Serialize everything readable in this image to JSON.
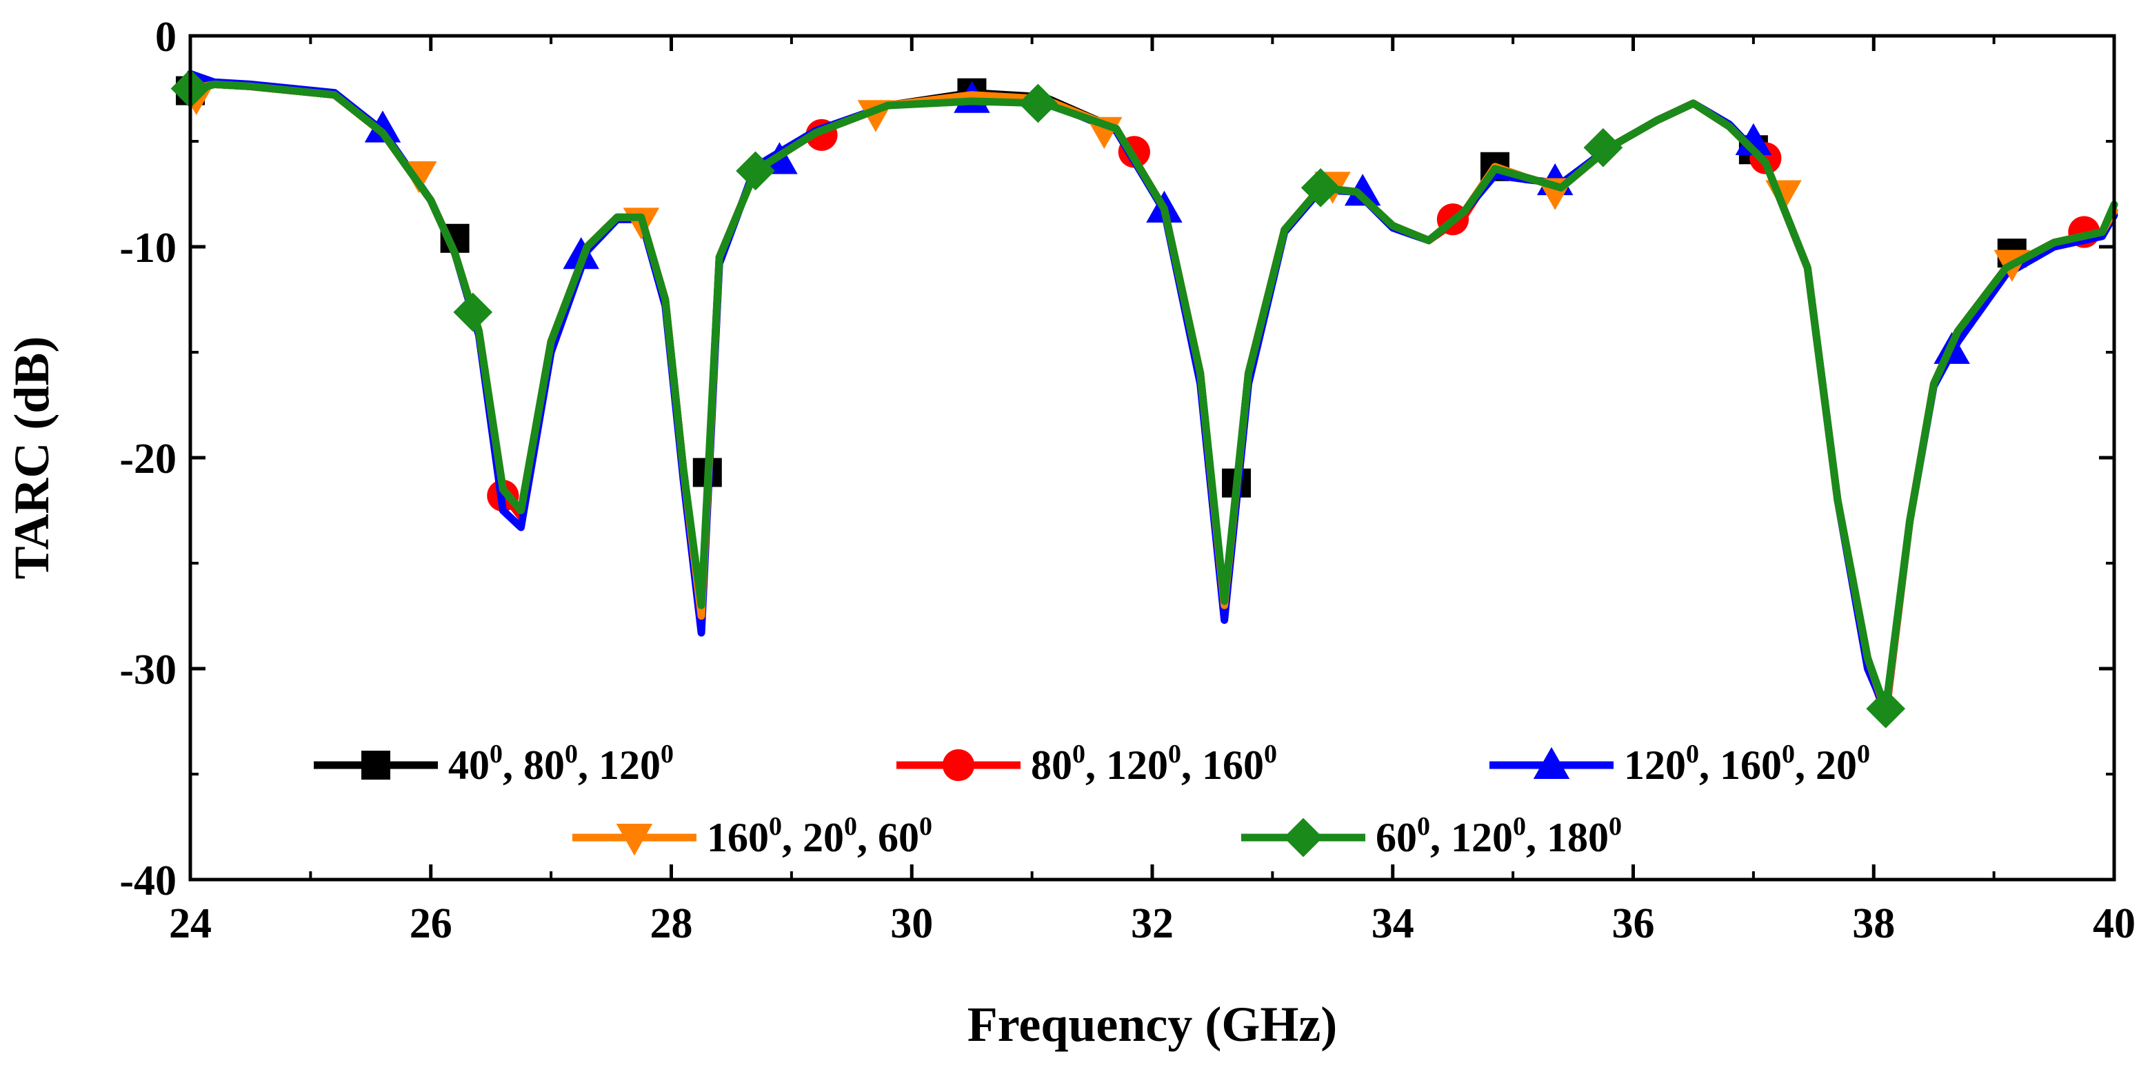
{
  "chart_data": {
    "type": "line",
    "title": "",
    "xlabel": "Frequency (GHz)",
    "ylabel": "TARC (dB)",
    "xlim": [
      24,
      40
    ],
    "ylim": [
      -40,
      0
    ],
    "xticks": [
      "24",
      "26",
      "28",
      "30",
      "32",
      "34",
      "36",
      "38",
      "40"
    ],
    "yticks": [
      "0",
      "-10",
      "-20",
      "-30",
      "-40"
    ],
    "grid": false,
    "legend_position": "bottom-center",
    "series": [
      {
        "name": "40⁰, 80⁰, 120⁰",
        "legend": {
          "parts": [
            "40",
            "0",
            ", 80",
            "0",
            ", 120",
            "0"
          ]
        },
        "color": "#000000",
        "marker": "square",
        "x": [
          24.0,
          24.2,
          24.5,
          25.2,
          25.6,
          26.0,
          26.2,
          26.4,
          26.6,
          26.75,
          27.0,
          27.3,
          27.55,
          27.75,
          27.95,
          28.1,
          28.25,
          28.4,
          28.7,
          29.2,
          29.8,
          30.5,
          31.1,
          31.7,
          32.1,
          32.4,
          32.6,
          32.8,
          33.1,
          33.4,
          33.7,
          34.0,
          34.3,
          34.6,
          34.85,
          35.1,
          35.4,
          35.8,
          36.2,
          36.5,
          36.8,
          37.1,
          37.45,
          37.7,
          37.95,
          38.1,
          38.3,
          38.5,
          38.7,
          39.1,
          39.5,
          39.9,
          40.0
        ],
        "y": [
          -2.5,
          -2.3,
          -2.4,
          -2.8,
          -4.6,
          -7.8,
          -10.3,
          -14.0,
          -21.5,
          -22.5,
          -14.5,
          -10.0,
          -8.6,
          -8.6,
          -12.5,
          -20.5,
          -27.5,
          -10.5,
          -6.4,
          -4.6,
          -3.3,
          -2.7,
          -2.9,
          -4.4,
          -8.2,
          -16.0,
          -27.0,
          -16.0,
          -9.2,
          -7.2,
          -7.4,
          -9.0,
          -9.7,
          -8.3,
          -6.2,
          -6.7,
          -7.2,
          -5.3,
          -4.0,
          -3.2,
          -4.3,
          -6.0,
          -11.0,
          -22.0,
          -29.5,
          -32.0,
          -23.0,
          -16.5,
          -14.0,
          -11.0,
          -9.8,
          -9.3,
          -8.3
        ],
        "markers_x": [
          24.0,
          26.2,
          28.3,
          30.5,
          32.7,
          34.85,
          37.0,
          39.15
        ],
        "markers_y": [
          -2.6,
          -9.6,
          -20.7,
          -2.7,
          -21.2,
          -6.2,
          -5.4,
          -10.3
        ]
      },
      {
        "name": "80⁰, 120⁰, 160⁰",
        "legend": {
          "parts": [
            "80",
            "0",
            ", 120",
            "0",
            ", 160",
            "0"
          ]
        },
        "color": "#ff0000",
        "marker": "circle",
        "x": [
          24.0,
          24.2,
          24.5,
          25.2,
          25.6,
          26.0,
          26.2,
          26.4,
          26.6,
          26.75,
          27.0,
          27.3,
          27.55,
          27.75,
          27.95,
          28.1,
          28.25,
          28.4,
          28.7,
          29.2,
          29.8,
          30.5,
          31.1,
          31.7,
          32.1,
          32.4,
          32.6,
          32.8,
          33.1,
          33.4,
          33.7,
          34.0,
          34.3,
          34.6,
          34.85,
          35.1,
          35.4,
          35.8,
          36.2,
          36.5,
          36.8,
          37.1,
          37.45,
          37.7,
          37.95,
          38.1,
          38.3,
          38.5,
          38.7,
          39.1,
          39.5,
          39.9,
          40.0
        ],
        "y": [
          -2.5,
          -2.3,
          -2.4,
          -2.8,
          -4.6,
          -7.8,
          -10.3,
          -14.0,
          -21.7,
          -22.8,
          -14.5,
          -10.0,
          -8.6,
          -8.6,
          -12.5,
          -20.5,
          -27.8,
          -10.5,
          -6.4,
          -4.6,
          -3.3,
          -2.8,
          -3.0,
          -4.4,
          -8.2,
          -16.0,
          -27.2,
          -16.0,
          -9.2,
          -7.2,
          -7.4,
          -9.0,
          -9.7,
          -8.5,
          -6.3,
          -6.7,
          -7.2,
          -5.3,
          -4.0,
          -3.2,
          -4.3,
          -6.0,
          -11.0,
          -22.0,
          -29.8,
          -32.2,
          -23.0,
          -16.5,
          -14.0,
          -11.0,
          -9.8,
          -9.3,
          -8.3
        ],
        "markers_x": [
          26.6,
          29.25,
          31.85,
          34.5,
          37.1,
          39.75
        ],
        "markers_y": [
          -21.8,
          -4.7,
          -5.5,
          -8.7,
          -5.8,
          -9.3
        ]
      },
      {
        "name": "120⁰, 160⁰, 20⁰",
        "legend": {
          "parts": [
            "120",
            "0",
            ", 160",
            "0",
            ", 20",
            "0"
          ]
        },
        "color": "#0000ff",
        "marker": "triangle-up",
        "x": [
          24.0,
          24.2,
          24.5,
          25.2,
          25.6,
          26.0,
          26.2,
          26.4,
          26.6,
          26.75,
          27.0,
          27.3,
          27.55,
          27.75,
          27.95,
          28.1,
          28.25,
          28.4,
          28.7,
          29.2,
          29.8,
          30.5,
          31.1,
          31.7,
          32.1,
          32.4,
          32.6,
          32.8,
          33.1,
          33.4,
          33.7,
          34.0,
          34.3,
          34.6,
          34.85,
          35.1,
          35.4,
          35.8,
          36.2,
          36.5,
          36.8,
          37.1,
          37.45,
          37.7,
          37.95,
          38.1,
          38.3,
          38.5,
          38.7,
          39.1,
          39.5,
          39.9,
          40.0
        ],
        "y": [
          -1.8,
          -2.2,
          -2.3,
          -2.7,
          -4.5,
          -7.8,
          -10.3,
          -14.2,
          -22.5,
          -23.3,
          -15.0,
          -10.2,
          -8.7,
          -8.7,
          -12.8,
          -21.0,
          -28.3,
          -10.8,
          -6.2,
          -4.5,
          -3.3,
          -3.0,
          -3.1,
          -4.5,
          -8.3,
          -16.5,
          -27.7,
          -16.5,
          -9.3,
          -7.3,
          -7.4,
          -9.1,
          -9.7,
          -8.3,
          -6.6,
          -6.8,
          -7.0,
          -5.3,
          -4.0,
          -3.2,
          -4.2,
          -6.0,
          -11.0,
          -22.0,
          -30.0,
          -32.0,
          -23.0,
          -16.6,
          -14.5,
          -11.3,
          -10.0,
          -9.5,
          -8.5
        ],
        "markers_x": [
          25.6,
          27.25,
          28.9,
          30.5,
          32.1,
          33.75,
          35.35,
          37.0,
          38.65
        ],
        "markers_y": [
          -4.4,
          -10.4,
          -5.9,
          -3.0,
          -8.2,
          -7.4,
          -6.9,
          -5.0,
          -14.9
        ]
      },
      {
        "name": "160⁰, 20⁰, 60⁰",
        "legend": {
          "parts": [
            "160",
            "0",
            ", 20",
            "0",
            ", 60",
            "0"
          ]
        },
        "color": "#ff8000",
        "marker": "triangle-down",
        "x": [
          24.0,
          24.2,
          24.5,
          25.2,
          25.6,
          26.0,
          26.2,
          26.4,
          26.6,
          26.75,
          27.0,
          27.3,
          27.55,
          27.75,
          27.95,
          28.1,
          28.25,
          28.4,
          28.7,
          29.2,
          29.8,
          30.5,
          31.1,
          31.7,
          32.1,
          32.4,
          32.6,
          32.8,
          33.1,
          33.4,
          33.7,
          34.0,
          34.3,
          34.6,
          34.85,
          35.1,
          35.4,
          35.8,
          36.2,
          36.5,
          36.8,
          37.1,
          37.45,
          37.7,
          37.95,
          38.1,
          38.3,
          38.5,
          38.7,
          39.1,
          39.5,
          39.9,
          40.0
        ],
        "y": [
          -2.5,
          -2.3,
          -2.4,
          -2.8,
          -4.6,
          -7.8,
          -10.3,
          -14.0,
          -21.5,
          -22.5,
          -14.5,
          -10.0,
          -8.6,
          -8.6,
          -12.5,
          -20.5,
          -27.5,
          -10.5,
          -6.4,
          -4.6,
          -3.3,
          -2.8,
          -3.0,
          -4.4,
          -8.2,
          -16.0,
          -27.0,
          -16.0,
          -9.2,
          -7.2,
          -7.4,
          -9.0,
          -9.7,
          -8.3,
          -6.2,
          -6.7,
          -7.2,
          -5.3,
          -4.0,
          -3.2,
          -4.3,
          -6.0,
          -11.0,
          -22.0,
          -29.5,
          -32.0,
          -23.0,
          -16.5,
          -14.0,
          -11.0,
          -9.8,
          -9.3,
          -8.3
        ],
        "markers_x": [
          24.05,
          25.9,
          27.75,
          29.7,
          31.6,
          33.5,
          35.35,
          37.25,
          39.15
        ],
        "markers_y": [
          -2.9,
          -6.6,
          -8.8,
          -3.7,
          -4.5,
          -7.1,
          -7.4,
          -7.5,
          -10.8
        ]
      },
      {
        "name": "60⁰, 120⁰, 180⁰",
        "legend": {
          "parts": [
            "60",
            "0",
            ", 120",
            "0",
            ", 180",
            "0"
          ]
        },
        "color": "#1a8a1a",
        "marker": "diamond",
        "x": [
          24.0,
          24.2,
          24.5,
          25.2,
          25.6,
          26.0,
          26.2,
          26.4,
          26.6,
          26.75,
          27.0,
          27.3,
          27.55,
          27.75,
          27.95,
          28.1,
          28.25,
          28.4,
          28.7,
          29.2,
          29.8,
          30.5,
          31.1,
          31.7,
          32.1,
          32.4,
          32.6,
          32.8,
          33.1,
          33.4,
          33.7,
          34.0,
          34.3,
          34.6,
          34.85,
          35.1,
          35.4,
          35.8,
          36.2,
          36.5,
          36.8,
          37.1,
          37.45,
          37.7,
          37.95,
          38.1,
          38.3,
          38.5,
          38.7,
          39.1,
          39.5,
          39.9,
          40.0
        ],
        "y": [
          -2.6,
          -2.3,
          -2.4,
          -2.8,
          -4.6,
          -7.8,
          -10.3,
          -14.0,
          -21.5,
          -22.5,
          -14.5,
          -10.0,
          -8.6,
          -8.6,
          -12.5,
          -20.5,
          -27.0,
          -10.5,
          -6.4,
          -4.6,
          -3.3,
          -3.1,
          -3.2,
          -4.4,
          -8.2,
          -16.0,
          -26.8,
          -16.0,
          -9.2,
          -7.2,
          -7.4,
          -9.0,
          -9.7,
          -8.3,
          -6.3,
          -6.7,
          -7.2,
          -5.3,
          -4.0,
          -3.2,
          -4.3,
          -6.0,
          -11.0,
          -22.0,
          -29.5,
          -31.9,
          -23.0,
          -16.5,
          -14.0,
          -11.0,
          -9.8,
          -9.3,
          -8.0
        ],
        "markers_x": [
          24.0,
          26.35,
          28.7,
          31.05,
          33.4,
          35.75,
          38.1
        ],
        "markers_y": [
          -2.5,
          -13.1,
          -6.4,
          -3.2,
          -7.2,
          -5.3,
          -31.9
        ]
      }
    ]
  }
}
